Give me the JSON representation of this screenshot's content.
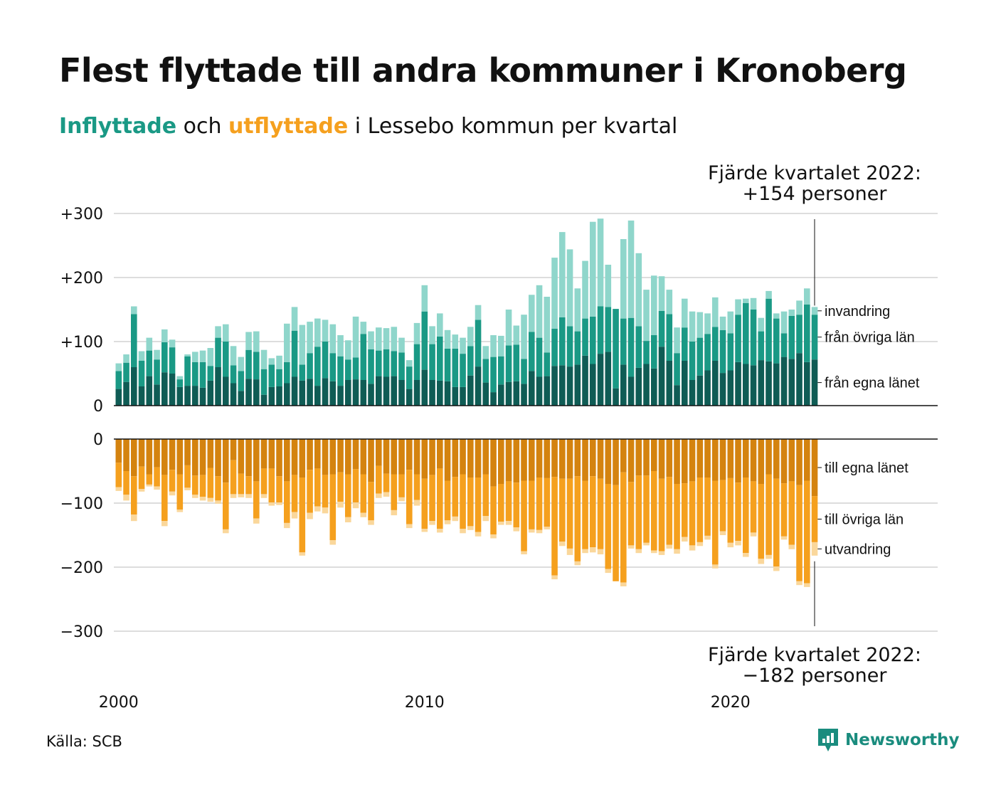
{
  "title": "Flest flyttade till andra kommuner i Kronoberg",
  "subtitle": {
    "inflyttade": "Inflyttade",
    "och": " och ",
    "utflyttade": "utflyttade",
    "rest": " i Lessebo kommun per kvartal"
  },
  "source": "Källa: SCB",
  "brand": "Newsworthy",
  "colors": {
    "in_egna": "#0f5c55",
    "in_ovriga": "#1a9985",
    "in_invandring": "#8fd6cb",
    "ut_egna": "#d4830f",
    "ut_ovriga": "#f5a01e",
    "ut_utvandring": "#fad79b",
    "grid": "#dddddd"
  },
  "chart_data": [
    {
      "type": "bar",
      "stacked": true,
      "x_ticks": [
        "2000",
        "2010",
        "2020"
      ],
      "y_ticks": [
        "+300",
        "+200",
        "+100",
        "0"
      ],
      "ylim": [
        0,
        300
      ],
      "x_range": [
        "2000 Q1",
        "2022 Q4"
      ],
      "series_labels": [
        "invandring",
        "från övriga län",
        "från egna länet"
      ],
      "annotation": [
        "Fjärde kvartalet 2022:",
        "+154 personer"
      ],
      "series": [
        {
          "name": "från egna länet",
          "values": [
            26,
            37,
            60,
            30,
            46,
            33,
            52,
            50,
            29,
            31,
            31,
            28,
            39,
            60,
            45,
            35,
            23,
            42,
            41,
            17,
            29,
            30,
            35,
            45,
            39,
            42,
            31,
            43,
            38,
            31,
            40,
            41,
            40,
            34,
            46,
            45,
            46,
            40,
            26,
            40,
            56,
            40,
            39,
            38,
            29,
            29,
            47,
            61,
            36,
            21,
            33,
            37,
            38,
            34,
            54,
            45,
            46,
            62,
            63,
            61,
            64,
            78,
            65,
            81,
            84,
            27,
            64,
            45,
            59,
            65,
            58,
            92,
            70,
            32,
            70,
            40,
            47,
            55,
            70,
            51,
            55,
            68,
            65,
            63,
            71,
            69,
            66,
            76,
            73,
            82,
            68,
            72
          ]
        },
        {
          "name": "från övriga län",
          "values": [
            28,
            30,
            83,
            40,
            40,
            39,
            47,
            41,
            12,
            46,
            37,
            40,
            23,
            46,
            55,
            28,
            31,
            45,
            43,
            40,
            35,
            27,
            33,
            72,
            25,
            40,
            61,
            57,
            44,
            46,
            32,
            34,
            72,
            54,
            40,
            43,
            39,
            43,
            35,
            56,
            91,
            56,
            69,
            51,
            60,
            52,
            46,
            73,
            37,
            55,
            44,
            57,
            57,
            39,
            61,
            61,
            37,
            58,
            75,
            63,
            52,
            58,
            74,
            74,
            70,
            124,
            72,
            92,
            65,
            36,
            52,
            56,
            73,
            50,
            52,
            60,
            59,
            57,
            53,
            67,
            58,
            74,
            95,
            87,
            45,
            98,
            70,
            37,
            67,
            60,
            90,
            70
          ]
        },
        {
          "name": "invandring",
          "values": [
            12,
            13,
            12,
            15,
            20,
            15,
            20,
            12,
            5,
            3,
            16,
            18,
            28,
            18,
            27,
            30,
            22,
            28,
            32,
            30,
            10,
            21,
            60,
            37,
            62,
            49,
            44,
            34,
            45,
            33,
            30,
            64,
            19,
            28,
            36,
            33,
            38,
            23,
            10,
            33,
            41,
            28,
            36,
            29,
            22,
            25,
            30,
            23,
            20,
            34,
            32,
            56,
            30,
            69,
            58,
            82,
            87,
            111,
            133,
            120,
            67,
            90,
            148,
            137,
            66,
            0,
            124,
            152,
            114,
            80,
            93,
            54,
            38,
            40,
            45,
            47,
            40,
            32,
            46,
            21,
            34,
            24,
            7,
            18,
            21,
            12,
            8,
            34,
            10,
            22,
            25,
            12
          ]
        }
      ]
    },
    {
      "type": "bar",
      "stacked": true,
      "y_ticks": [
        "0",
        "−100",
        "−200",
        "−300"
      ],
      "ylim": [
        -300,
        0
      ],
      "series_labels": [
        "till egna länet",
        "till övriga län",
        "utvandring"
      ],
      "annotation": [
        "Fjärde kvartalet 2022:",
        "−182 personer"
      ],
      "series": [
        {
          "name": "till egna länet",
          "values": [
            -37,
            -50,
            -58,
            -43,
            -55,
            -44,
            -56,
            -48,
            -55,
            -41,
            -57,
            -56,
            -45,
            -58,
            -68,
            -33,
            -54,
            -58,
            -66,
            -46,
            -46,
            -58,
            -66,
            -56,
            -60,
            -48,
            -46,
            -56,
            -55,
            -52,
            -55,
            -47,
            -55,
            -67,
            -42,
            -54,
            -55,
            -55,
            -48,
            -55,
            -62,
            -56,
            -46,
            -65,
            -59,
            -55,
            -60,
            -60,
            -55,
            -74,
            -70,
            -66,
            -68,
            -65,
            -65,
            -60,
            -61,
            -59,
            -62,
            -62,
            -58,
            -65,
            -58,
            -62,
            -70,
            -72,
            -52,
            -67,
            -57,
            -57,
            -50,
            -62,
            -59,
            -70,
            -69,
            -66,
            -60,
            -60,
            -65,
            -64,
            -61,
            -68,
            -60,
            -66,
            -70,
            -55,
            -62,
            -69,
            -66,
            -72,
            -65,
            -89
          ]
        },
        {
          "name": "till övriga län",
          "values": [
            -38,
            -37,
            -60,
            -35,
            -16,
            -30,
            -72,
            -34,
            -55,
            -35,
            -30,
            -34,
            -47,
            -38,
            -73,
            -53,
            -32,
            -28,
            -58,
            -40,
            -53,
            -41,
            -65,
            -58,
            -117,
            -67,
            -59,
            -51,
            -103,
            -46,
            -67,
            -52,
            -60,
            -60,
            -43,
            -29,
            -56,
            -36,
            -85,
            -40,
            -78,
            -72,
            -94,
            -62,
            -62,
            -85,
            -76,
            -85,
            -65,
            -75,
            -59,
            -62,
            -70,
            -110,
            -76,
            -82,
            -76,
            -154,
            -98,
            -109,
            -133,
            -107,
            -111,
            -110,
            -133,
            -150,
            -172,
            -99,
            -115,
            -105,
            -124,
            -113,
            -106,
            -102,
            -84,
            -100,
            -101,
            -91,
            -131,
            -80,
            -101,
            -91,
            -118,
            -80,
            -117,
            -126,
            -137,
            -83,
            -99,
            -150,
            -160,
            -72
          ]
        },
        {
          "name": "utvandring",
          "values": [
            -6,
            -9,
            -10,
            -4,
            -3,
            -5,
            -8,
            -6,
            -4,
            -4,
            -5,
            -6,
            -6,
            -5,
            -6,
            -6,
            -5,
            -6,
            -8,
            -6,
            -5,
            -4,
            -8,
            -10,
            -5,
            -10,
            -8,
            -9,
            -7,
            -9,
            -8,
            -9,
            -7,
            -7,
            -7,
            -7,
            -8,
            -6,
            -6,
            -9,
            -5,
            -6,
            -6,
            -6,
            -7,
            -7,
            -6,
            -7,
            -8,
            -6,
            -5,
            -6,
            -6,
            -5,
            -5,
            -5,
            -4,
            -6,
            -7,
            -10,
            -6,
            -6,
            -8,
            -8,
            -6,
            0,
            -6,
            -5,
            -6,
            -4,
            -4,
            -6,
            -6,
            -7,
            -7,
            -8,
            -6,
            -6,
            -6,
            -6,
            -7,
            -7,
            -6,
            -6,
            -8,
            -6,
            -7,
            -5,
            -7,
            -6,
            -6,
            -21
          ]
        }
      ]
    }
  ]
}
